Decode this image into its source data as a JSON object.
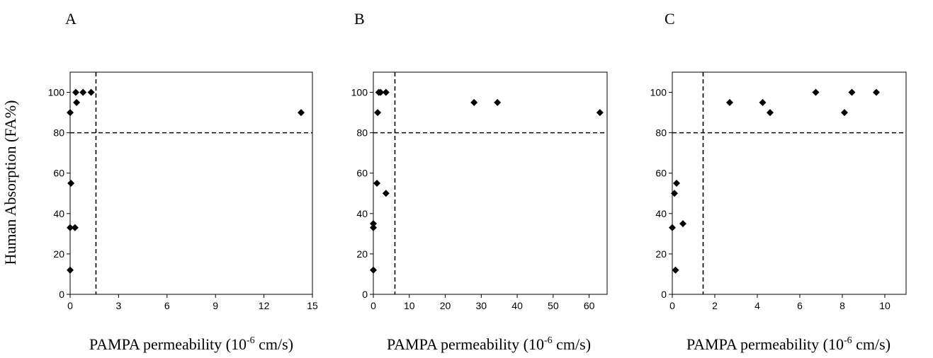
{
  "figure": {
    "ylabel": "Human Absorption (FA%)",
    "xlabel_prefix": "PAMPA permeability (10",
    "xlabel_exp": "-6",
    "xlabel_suffix": " cm/s)"
  },
  "chart_data": [
    {
      "type": "scatter",
      "panel": "A",
      "xlim": [
        0,
        15
      ],
      "ylim": [
        0,
        110
      ],
      "xticks": [
        0,
        3,
        6,
        9,
        12,
        15
      ],
      "yticks": [
        0,
        20,
        40,
        60,
        80,
        100
      ],
      "hline": 80,
      "vline": 1.6,
      "marker": "diamond",
      "marker_color": "#000000",
      "grid": false,
      "x": [
        0,
        0,
        0.3,
        0.4,
        0.35,
        0.8,
        1.3,
        0,
        0.05,
        14.3
      ],
      "y": [
        12,
        33,
        33,
        95,
        100,
        100,
        100,
        90,
        55,
        90
      ]
    },
    {
      "type": "scatter",
      "panel": "B",
      "xlim": [
        0,
        65
      ],
      "ylim": [
        0,
        110
      ],
      "xticks": [
        0,
        10,
        20,
        30,
        40,
        50,
        60
      ],
      "yticks": [
        0,
        20,
        40,
        60,
        80,
        100
      ],
      "hline": 80,
      "vline": 6,
      "marker": "diamond",
      "marker_color": "#000000",
      "grid": false,
      "x": [
        0,
        0,
        0,
        1,
        1.2,
        1.5,
        2,
        3.5,
        3.5,
        28,
        34.5,
        63
      ],
      "y": [
        12,
        33,
        35,
        55,
        90,
        100,
        100,
        100,
        50,
        95,
        95,
        90
      ]
    },
    {
      "type": "scatter",
      "panel": "C",
      "xlim": [
        0,
        11
      ],
      "ylim": [
        0,
        110
      ],
      "xticks": [
        0,
        2,
        4,
        6,
        8,
        10
      ],
      "yticks": [
        0,
        20,
        40,
        60,
        80,
        100
      ],
      "hline": 80,
      "vline": 1.45,
      "marker": "diamond",
      "marker_color": "#000000",
      "grid": false,
      "x": [
        0,
        0.15,
        0.2,
        0.1,
        0.5,
        2.7,
        4.25,
        4.6,
        6.75,
        8.1,
        8.45,
        9.6
      ],
      "y": [
        33,
        12,
        55,
        50,
        35,
        95,
        95,
        90,
        100,
        90,
        100,
        100
      ]
    }
  ]
}
